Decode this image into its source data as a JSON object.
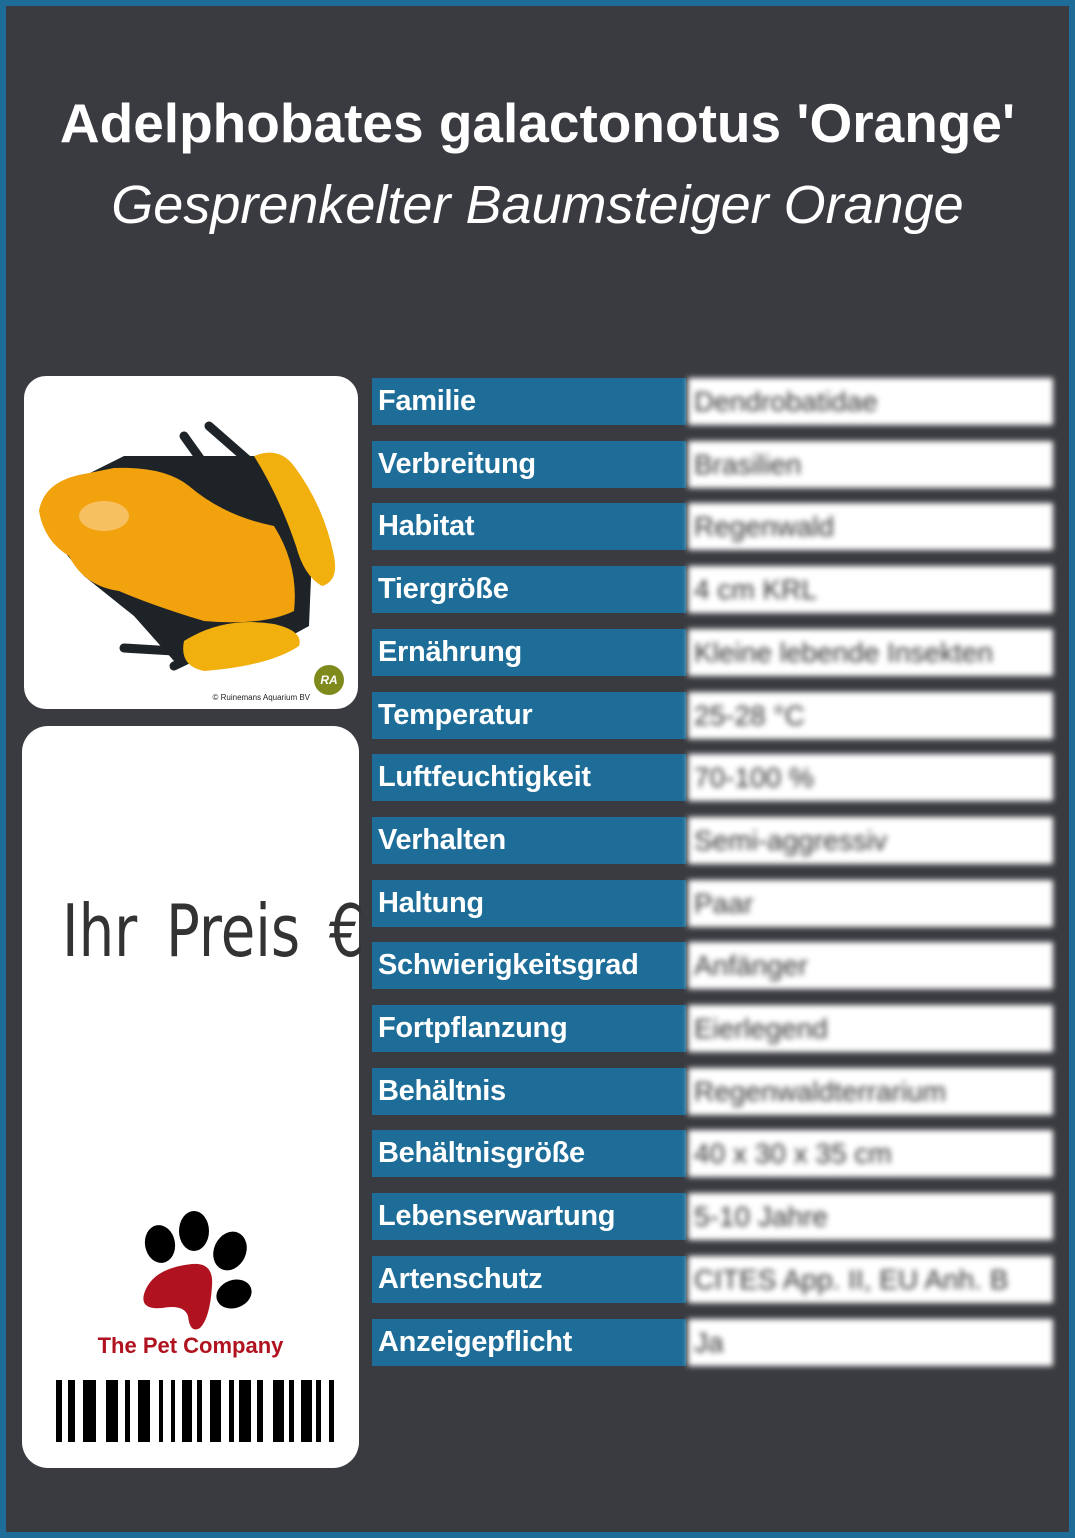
{
  "header": {
    "title": "Adelphobates galactonotus 'Orange'",
    "subtitle": "Gesprenkelter Baumsteiger Orange"
  },
  "photo": {
    "copyright": "© Ruinemans Aquarium BV",
    "logo_text": "RA"
  },
  "price": {
    "label": "Ihr Preis €"
  },
  "brand": {
    "name": "The Pet Company",
    "colors": {
      "paw_main": "#b0131f",
      "toes": "#000000"
    }
  },
  "colors": {
    "background": "#3a3b40",
    "frame": "#1d6d98",
    "label_cell": "#1d6d98"
  },
  "table": {
    "rows": [
      {
        "label": "Familie",
        "value": "Dendrobatidae"
      },
      {
        "label": "Verbreitung",
        "value": "Brasilien"
      },
      {
        "label": "Habitat",
        "value": "Regenwald"
      },
      {
        "label": "Tiergröße",
        "value": "4 cm KRL"
      },
      {
        "label": "Ernährung",
        "value": "Kleine lebende Insekten"
      },
      {
        "label": "Temperatur",
        "value": "25-28 °C"
      },
      {
        "label": "Luftfeuchtigkeit",
        "value": "70-100 %"
      },
      {
        "label": "Verhalten",
        "value": "Semi-aggressiv"
      },
      {
        "label": "Haltung",
        "value": "Paar"
      },
      {
        "label": "Schwierigkeitsgrad",
        "value": "Anfänger"
      },
      {
        "label": "Fortpflanzung",
        "value": "Eierlegend"
      },
      {
        "label": "Behältnis",
        "value": "Regenwaldterrarium"
      },
      {
        "label": "Behältnisgröße",
        "value": "40 x 30 x 35 cm"
      },
      {
        "label": "Lebenserwartung",
        "value": "5-10 Jahre"
      },
      {
        "label": "Artenschutz",
        "value": "CITES App. II, EU Anh. B"
      },
      {
        "label": "Anzeigepflicht",
        "value": "Ja"
      }
    ]
  }
}
